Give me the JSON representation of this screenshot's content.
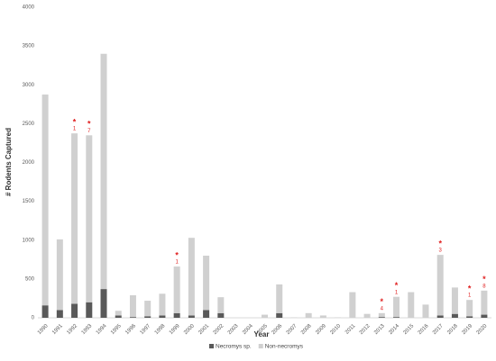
{
  "chart_data": {
    "type": "stacked-bar",
    "x_label": "Year",
    "y_label": "# Rodents Captured",
    "categories": [
      "1990",
      "1991",
      "1992",
      "1993",
      "1994",
      "1995",
      "1996",
      "1997",
      "1998",
      "1999",
      "2000",
      "2001",
      "2002",
      "2003",
      "2004",
      "2005",
      "2006",
      "2007",
      "2008",
      "2009",
      "2010",
      "2011",
      "2012",
      "2013",
      "2014",
      "2015",
      "2016",
      "2017",
      "2018",
      "2019",
      "2020"
    ],
    "series": [
      {
        "name": "Necromys sp.",
        "color": "#595959",
        "values": [
          160,
          100,
          180,
          200,
          370,
          30,
          10,
          20,
          30,
          60,
          30,
          100,
          60,
          0,
          0,
          0,
          60,
          0,
          0,
          0,
          0,
          0,
          0,
          10,
          10,
          0,
          0,
          30,
          50,
          20,
          40
        ]
      },
      {
        "name": "Non-necromys",
        "color": "#d0d0d0",
        "values": [
          2715,
          910,
          2195,
          2150,
          3030,
          60,
          280,
          200,
          280,
          600,
          1000,
          700,
          205,
          0,
          0,
          40,
          370,
          5,
          60,
          30,
          5,
          330,
          50,
          50,
          260,
          330,
          170,
          780,
          340,
          210,
          310
        ]
      }
    ],
    "annotations": [
      {
        "x": "1992",
        "mark": "*",
        "label": "1"
      },
      {
        "x": "1993",
        "mark": "*",
        "label": "7"
      },
      {
        "x": "1999",
        "mark": "*",
        "label": "1"
      },
      {
        "x": "2013",
        "mark": "*",
        "label": "4"
      },
      {
        "x": "2014",
        "mark": "*",
        "label": "1"
      },
      {
        "x": "2017",
        "mark": "*",
        "label": "3"
      },
      {
        "x": "2019",
        "mark": "*",
        "label": "1"
      },
      {
        "x": "2020",
        "mark": "*",
        "label": "8"
      }
    ],
    "ylim": [
      0,
      4000
    ],
    "yticks": [
      0,
      500,
      1000,
      1500,
      2000,
      2500,
      3000,
      3500,
      4000
    ],
    "grid": false,
    "legend": "bottom"
  }
}
